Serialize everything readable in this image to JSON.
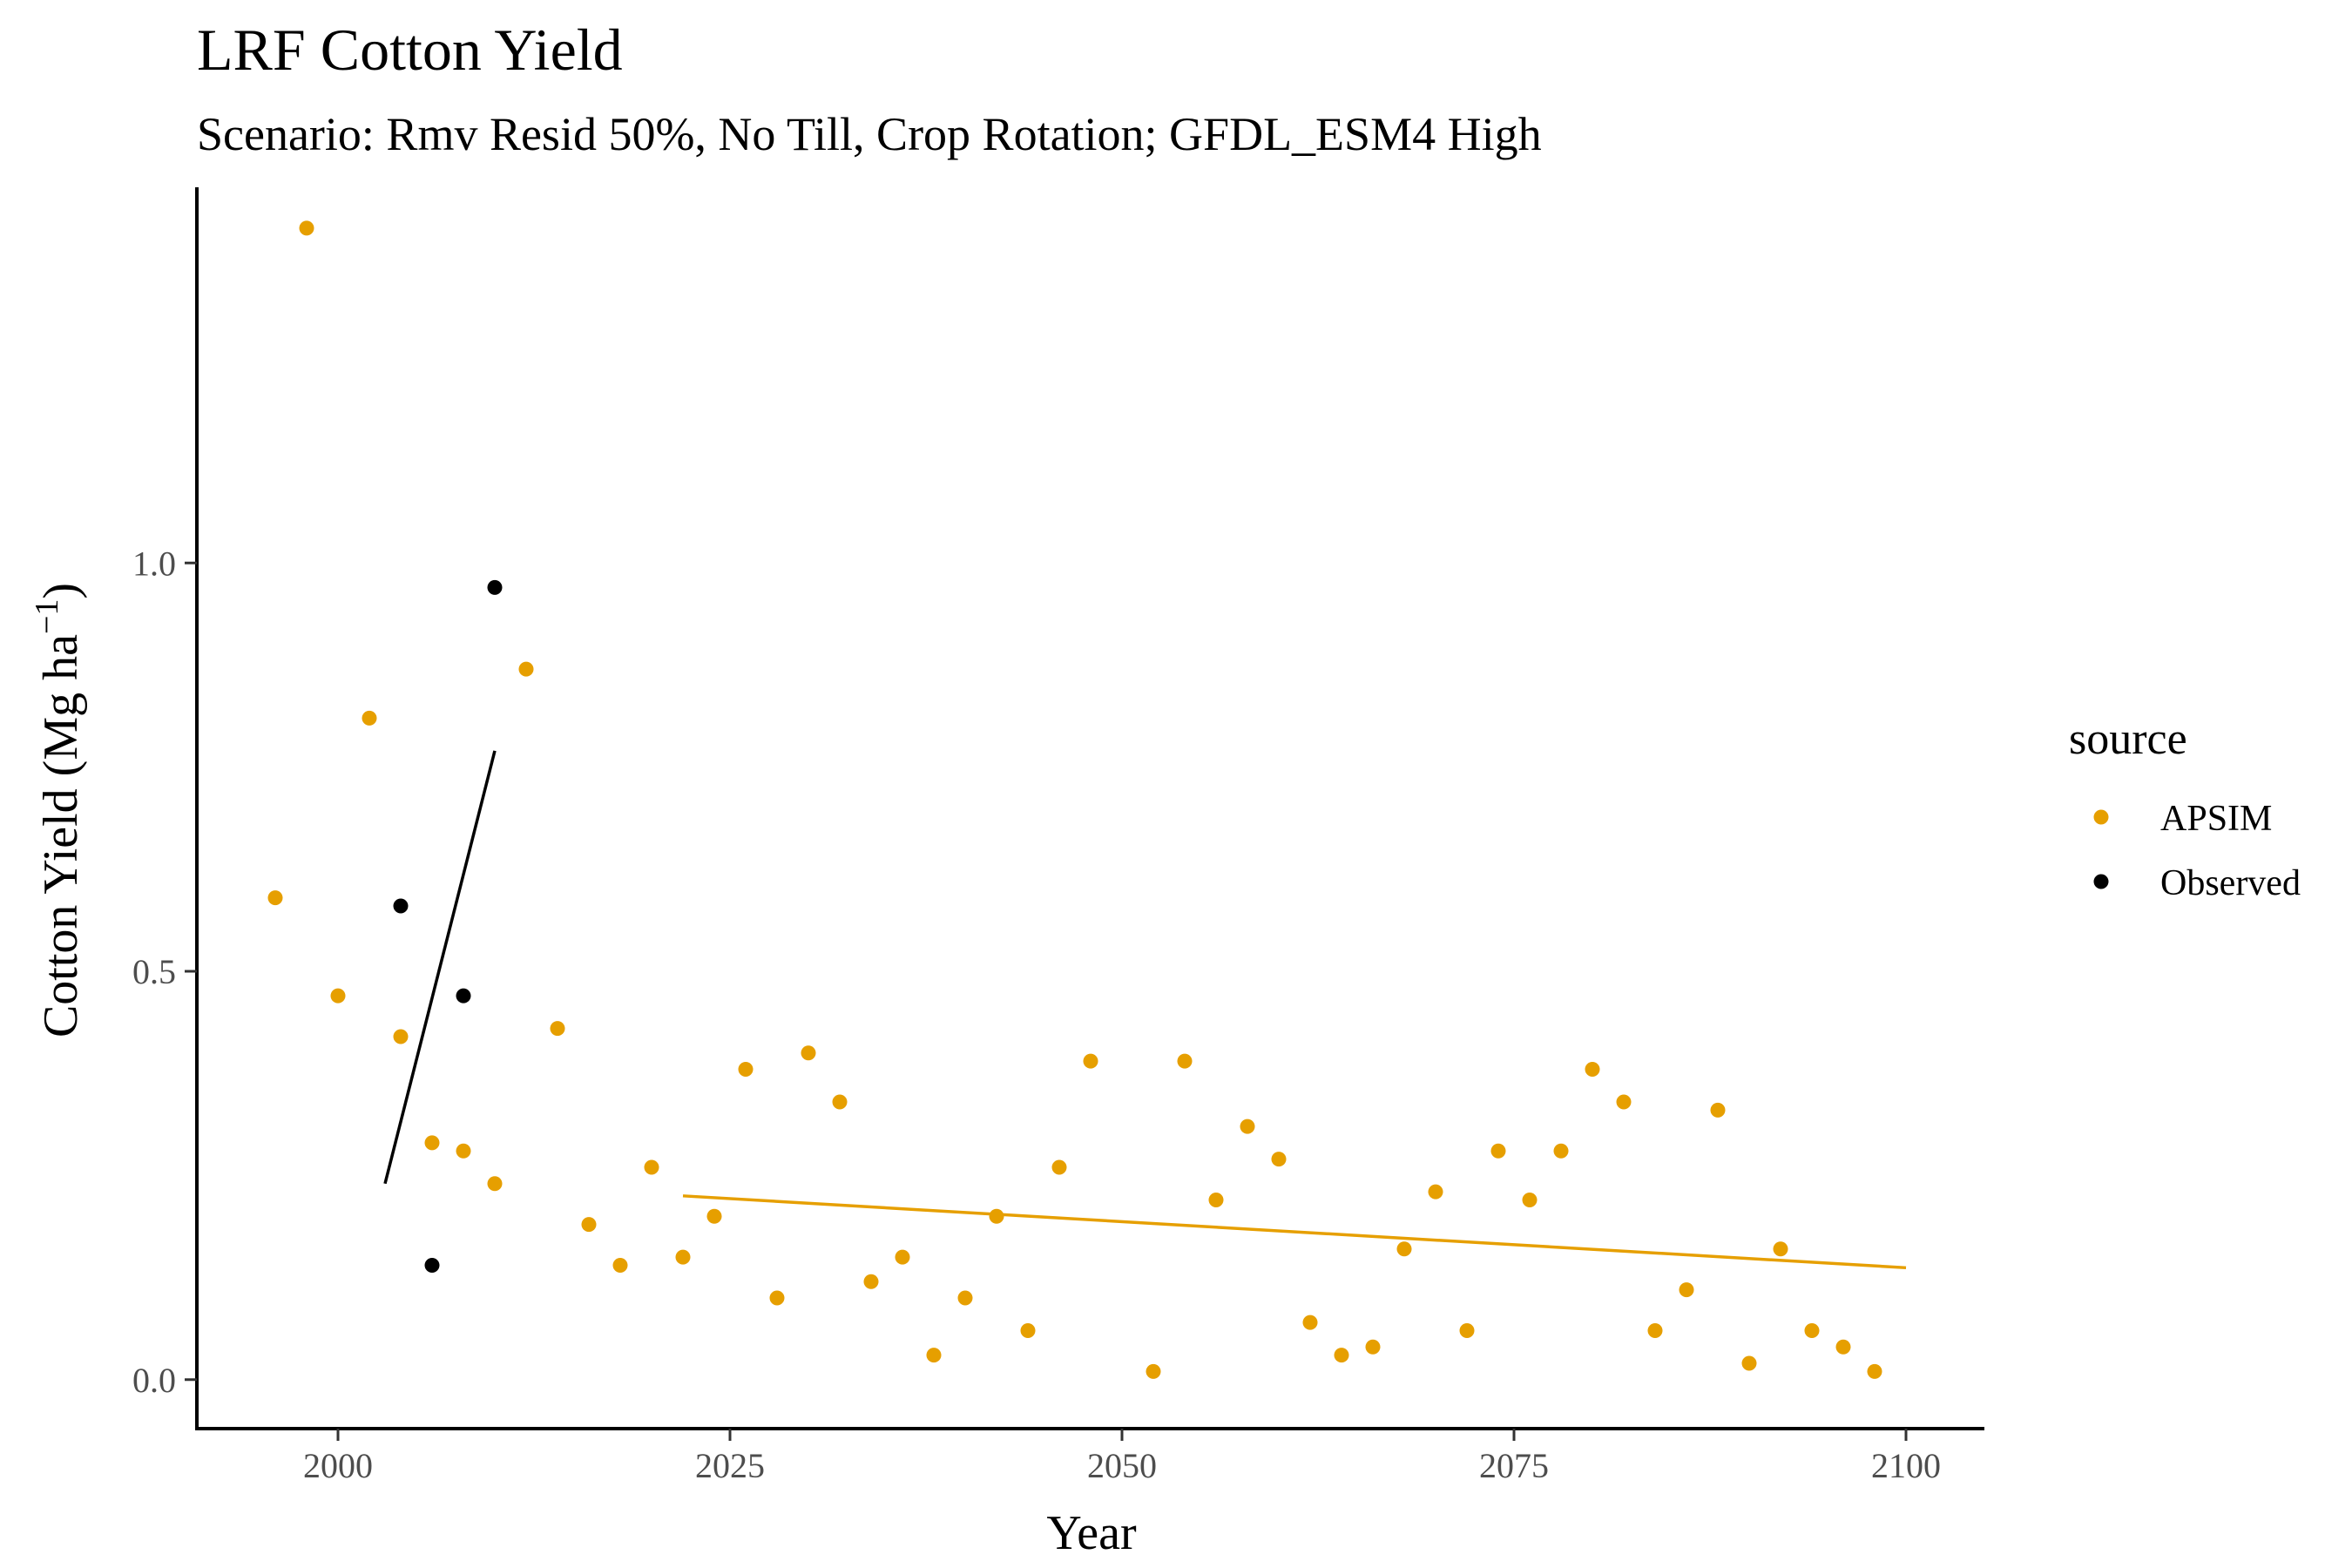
{
  "chart_data": {
    "type": "scatter",
    "title": "LRF Cotton Yield",
    "subtitle": "Scenario: Rmv Resid 50%, No Till, Crop Rotation; GFDL_ESM4 High",
    "xlabel": "Year",
    "ylabel": "Cotton Yield (Mg ha",
    "ylabel_superscript": "−1",
    "ylabel_close": ")",
    "xlim": [
      1991,
      2105
    ],
    "ylim": [
      -0.06,
      1.46
    ],
    "x_ticks": [
      2000,
      2025,
      2050,
      2075,
      2100
    ],
    "y_ticks": [
      0.0,
      0.5,
      1.0
    ],
    "y_tick_labels": [
      "0.0",
      "0.5",
      "1.0"
    ],
    "grid": false,
    "legend": {
      "title": "source",
      "placement": "right",
      "entries": [
        {
          "label": "APSIM",
          "color": "#E69F00"
        },
        {
          "label": "Observed",
          "color": "#000000"
        }
      ]
    },
    "series": [
      {
        "name": "APSIM",
        "color": "#E69F00",
        "points": [
          [
            1996,
            0.59
          ],
          [
            1998,
            1.41
          ],
          [
            2000,
            0.47
          ],
          [
            2002,
            0.81
          ],
          [
            2004,
            0.42
          ],
          [
            2006,
            0.29
          ],
          [
            2008,
            0.28
          ],
          [
            2010,
            0.24
          ],
          [
            2012,
            0.87
          ],
          [
            2014,
            0.43
          ],
          [
            2016,
            0.19
          ],
          [
            2018,
            0.14
          ],
          [
            2020,
            0.26
          ],
          [
            2022,
            0.15
          ],
          [
            2024,
            0.2
          ],
          [
            2026,
            0.38
          ],
          [
            2028,
            0.1
          ],
          [
            2030,
            0.4
          ],
          [
            2032,
            0.34
          ],
          [
            2034,
            0.12
          ],
          [
            2036,
            0.15
          ],
          [
            2038,
            0.03
          ],
          [
            2040,
            0.1
          ],
          [
            2042,
            0.2
          ],
          [
            2044,
            0.06
          ],
          [
            2046,
            0.26
          ],
          [
            2048,
            0.39
          ],
          [
            2052,
            0.01
          ],
          [
            2054,
            0.39
          ],
          [
            2056,
            0.22
          ],
          [
            2058,
            0.31
          ],
          [
            2060,
            0.27
          ],
          [
            2062,
            0.07
          ],
          [
            2064,
            0.03
          ],
          [
            2066,
            0.04
          ],
          [
            2068,
            0.16
          ],
          [
            2070,
            0.23
          ],
          [
            2072,
            0.06
          ],
          [
            2074,
            0.28
          ],
          [
            2076,
            0.22
          ],
          [
            2078,
            0.28
          ],
          [
            2080,
            0.38
          ],
          [
            2082,
            0.34
          ],
          [
            2084,
            0.06
          ],
          [
            2086,
            0.11
          ],
          [
            2088,
            0.33
          ],
          [
            2090,
            0.02
          ],
          [
            2092,
            0.16
          ],
          [
            2094,
            0.06
          ],
          [
            2096,
            0.04
          ],
          [
            2098,
            0.01
          ]
        ],
        "trend": [
          [
            2022,
            0.225
          ],
          [
            2100,
            0.137
          ]
        ]
      },
      {
        "name": "Observed",
        "color": "#000000",
        "points": [
          [
            2004,
            0.58
          ],
          [
            2006,
            0.14
          ],
          [
            2008,
            0.47
          ],
          [
            2010,
            0.97
          ]
        ],
        "trend": [
          [
            2003,
            0.24
          ],
          [
            2010,
            0.77
          ]
        ]
      }
    ]
  }
}
